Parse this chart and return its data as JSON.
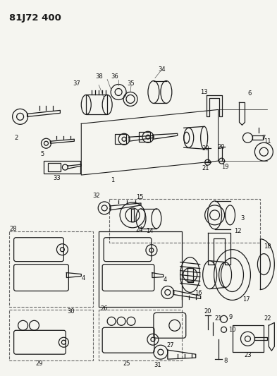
{
  "title": "81J72 400",
  "bg_color": "#f5f5f0",
  "line_color": "#1a1a1a",
  "label_color": "#111111",
  "label_fontsize": 6.0,
  "title_fontsize": 9.5,
  "fig_width": 3.93,
  "fig_height": 5.33,
  "dpi": 100,
  "lw": 0.9
}
